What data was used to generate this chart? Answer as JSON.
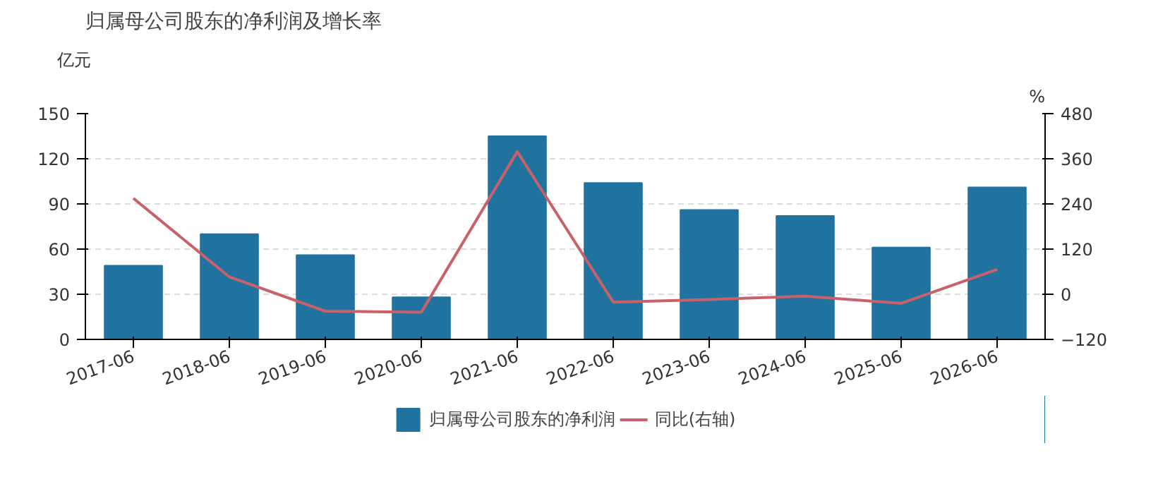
{
  "chart_data": {
    "type": "bar",
    "title": "归属母公司股东的净利润及增长率",
    "ylabel": "亿元",
    "y2label": "%",
    "categories": [
      "2017-06",
      "2018-06",
      "2019-06",
      "2020-06",
      "2021-06",
      "2022-06",
      "2023-06",
      "2024-06",
      "2025-06",
      "2026-06"
    ],
    "series": [
      {
        "name": "归属母公司股东的净利润",
        "color": "#21739f",
        "values": [
          49,
          70,
          56,
          28,
          135,
          104,
          86,
          82,
          61,
          101
        ]
      },
      {
        "name": "同比(右轴)",
        "type": "line",
        "axis": "y2",
        "color": "#c8616a",
        "values": [
          255,
          46,
          -45,
          -48,
          379,
          -21,
          -14,
          -5,
          -24,
          66
        ]
      }
    ],
    "ylim": [
      0,
      150
    ],
    "yticks": [
      0,
      30,
      60,
      90,
      120,
      150
    ],
    "y2lim": [
      -120,
      480
    ],
    "y2ticks": [
      -120,
      0,
      120,
      240,
      360,
      480
    ],
    "grid": "y",
    "legend": "bottom",
    "marker": "none",
    "line_style": "solid"
  }
}
